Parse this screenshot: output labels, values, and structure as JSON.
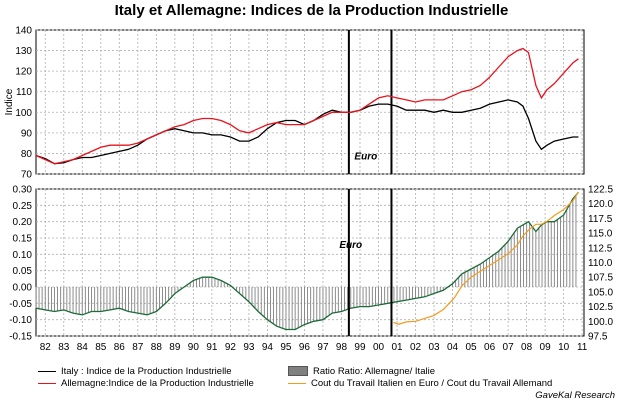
{
  "title": "Italy et Allemagne: Indices de la Production Industrielle",
  "credit": "GaveKal Research",
  "colors": {
    "italy": "#000000",
    "germany": "#e8131d",
    "ratio_bar": "#808080",
    "ratio_line": "#1e6b3a",
    "labour_cost": "#f39b1c",
    "grid": "#b0b0b0"
  },
  "legend": {
    "italy": "Italy : Indice de la Production Industrielle",
    "germany": "Allemagne:Indice de la Production Industrielle",
    "ratio": "Ratio Ratio: Allemagne/ Italie",
    "labour_cost": "Cout du Travail Italien en Euro / Cout du Travail Allemand"
  },
  "chart_data": [
    {
      "type": "line",
      "title": "Italy et Allemagne: Indices de la Production Industrielle",
      "ylabel": "Indice",
      "ylim": [
        70,
        140
      ],
      "yticks": [
        70,
        80,
        90,
        100,
        110,
        120,
        130,
        140
      ],
      "xlim": [
        1982,
        2011.6
      ],
      "xtick_labels": [
        "82",
        "83",
        "84",
        "85",
        "86",
        "87",
        "88",
        "89",
        "90",
        "91",
        "92",
        "93",
        "94",
        "95",
        "96",
        "97",
        "98",
        "99",
        "00",
        "01",
        "02",
        "03",
        "04",
        "05",
        "06",
        "07",
        "08",
        "09",
        "10",
        "11"
      ],
      "grid": true,
      "annotations": [
        {
          "text": "Euro",
          "x": 1999.2,
          "y": 77
        }
      ],
      "vlines": [
        1998.9,
        2001.2
      ],
      "series": [
        {
          "name": "Italy : Indice de la Production Industrielle",
          "x": [
            1982,
            1982.5,
            1983,
            1983.5,
            1984,
            1984.5,
            1985,
            1985.5,
            1986,
            1986.5,
            1987,
            1987.5,
            1988,
            1988.5,
            1989,
            1989.5,
            1990,
            1990.5,
            1991,
            1991.5,
            1992,
            1992.5,
            1993,
            1993.5,
            1994,
            1994.5,
            1995,
            1995.5,
            1996,
            1996.5,
            1997,
            1997.5,
            1998,
            1998.5,
            1999,
            1999.5,
            2000,
            2000.5,
            2001,
            2001.5,
            2002,
            2002.5,
            2003,
            2003.5,
            2004,
            2004.5,
            2005,
            2005.5,
            2006,
            2006.5,
            2007,
            2007.5,
            2008,
            2008.3,
            2008.6,
            2009,
            2009.3,
            2009.6,
            2010,
            2010.5,
            2011,
            2011.3
          ],
          "values": [
            79,
            77.5,
            75,
            75.5,
            77,
            78,
            78,
            79,
            80,
            81,
            82,
            84,
            87,
            89,
            91,
            92,
            91,
            90,
            90,
            89,
            89,
            88,
            86,
            86,
            88,
            92,
            95,
            96,
            96,
            94,
            96,
            99,
            101,
            100,
            100,
            101,
            103,
            104,
            104,
            103,
            101,
            101,
            101,
            100,
            101,
            100,
            100,
            101,
            102,
            104,
            105,
            106,
            105,
            103,
            97,
            86,
            82,
            84,
            86,
            87,
            88,
            88
          ]
        },
        {
          "name": "Allemagne:Indice de la Production Industrielle",
          "x": [
            1982,
            1982.5,
            1983,
            1983.5,
            1984,
            1984.5,
            1985,
            1985.5,
            1986,
            1986.5,
            1987,
            1987.5,
            1988,
            1988.5,
            1989,
            1989.5,
            1990,
            1990.5,
            1991,
            1991.5,
            1992,
            1992.5,
            1993,
            1993.5,
            1994,
            1994.5,
            1995,
            1995.5,
            1996,
            1996.5,
            1997,
            1997.5,
            1998,
            1998.5,
            1999,
            1999.5,
            2000,
            2000.5,
            2001,
            2001.5,
            2002,
            2002.5,
            2003,
            2003.5,
            2004,
            2004.5,
            2005,
            2005.5,
            2006,
            2006.5,
            2007,
            2007.5,
            2008,
            2008.3,
            2008.6,
            2009,
            2009.3,
            2009.6,
            2010,
            2010.5,
            2011,
            2011.3
          ],
          "values": [
            79,
            77,
            75,
            76,
            77,
            79,
            81,
            83,
            84,
            84,
            84,
            85,
            87,
            89,
            91,
            93,
            94,
            96,
            97,
            97,
            96,
            94,
            91,
            90,
            92,
            94,
            95,
            94,
            94,
            94,
            96,
            98,
            100,
            100,
            100,
            101,
            104,
            107,
            108,
            107,
            106,
            105,
            106,
            106,
            106,
            108,
            110,
            111,
            113,
            117,
            122,
            127,
            130,
            131,
            129,
            113,
            107,
            111,
            114,
            119,
            124,
            126
          ]
        }
      ]
    },
    {
      "type": "bar",
      "ylim": [
        -0.15,
        0.3
      ],
      "yticks": [
        -0.15,
        -0.1,
        -0.05,
        0.0,
        0.05,
        0.1,
        0.15,
        0.2,
        0.25,
        0.3
      ],
      "y2lim": [
        97.5,
        122.5
      ],
      "y2ticks": [
        97.5,
        100.0,
        102.5,
        105.0,
        107.5,
        110.0,
        112.5,
        115.0,
        117.5,
        120.0,
        122.5
      ],
      "xlim": [
        1982,
        2011.6
      ],
      "xtick_labels": [
        "82",
        "83",
        "84",
        "85",
        "86",
        "87",
        "88",
        "89",
        "90",
        "91",
        "92",
        "93",
        "94",
        "95",
        "96",
        "97",
        "98",
        "99",
        "00",
        "01",
        "02",
        "03",
        "04",
        "05",
        "06",
        "07",
        "08",
        "09",
        "10",
        "11"
      ],
      "grid": true,
      "annotations": [
        {
          "text": "Euro",
          "x": 1999,
          "y": 0.12
        }
      ],
      "vlines": [
        1998.9,
        2001.2
      ],
      "series": [
        {
          "name": "Ratio Ratio: Allemagne/ Italie",
          "x": [
            1982,
            1982.5,
            1983,
            1983.5,
            1984,
            1984.5,
            1985,
            1985.5,
            1986,
            1986.5,
            1987,
            1987.5,
            1988,
            1988.5,
            1989,
            1989.5,
            1990,
            1990.5,
            1991,
            1991.5,
            1992,
            1992.5,
            1993,
            1993.5,
            1994,
            1994.5,
            1995,
            1995.5,
            1996,
            1996.5,
            1997,
            1997.5,
            1998,
            1998.5,
            1999,
            1999.5,
            2000,
            2000.5,
            2001,
            2001.5,
            2002,
            2002.5,
            2003,
            2003.5,
            2004,
            2004.5,
            2005,
            2005.5,
            2006,
            2006.5,
            2007,
            2007.5,
            2008,
            2008.3,
            2008.6,
            2009,
            2009.3,
            2009.6,
            2010,
            2010.5,
            2011,
            2011.3
          ],
          "values": [
            -0.065,
            -0.07,
            -0.075,
            -0.07,
            -0.08,
            -0.085,
            -0.075,
            -0.075,
            -0.07,
            -0.065,
            -0.075,
            -0.08,
            -0.085,
            -0.075,
            -0.05,
            -0.02,
            0.0,
            0.02,
            0.03,
            0.03,
            0.02,
            0.005,
            -0.02,
            -0.045,
            -0.075,
            -0.1,
            -0.12,
            -0.13,
            -0.13,
            -0.115,
            -0.105,
            -0.1,
            -0.08,
            -0.075,
            -0.065,
            -0.06,
            -0.06,
            -0.055,
            -0.05,
            -0.045,
            -0.04,
            -0.035,
            -0.03,
            -0.02,
            -0.01,
            0.01,
            0.04,
            0.055,
            0.07,
            0.09,
            0.11,
            0.14,
            0.18,
            0.19,
            0.2,
            0.17,
            0.19,
            0.2,
            0.2,
            0.22,
            0.27,
            0.29
          ]
        },
        {
          "name": "Cout du Travail Italien en Euro / Cout du Travail Allemand",
          "axis": "right",
          "x": [
            2001.3,
            2001.6,
            2002,
            2002.5,
            2003,
            2003.5,
            2004,
            2004.3,
            2004.6,
            2005,
            2005.5,
            2006,
            2006.5,
            2007,
            2007.5,
            2008,
            2008.3,
            2008.6,
            2009,
            2009.3,
            2009.6,
            2010,
            2010.5,
            2011,
            2011.3
          ],
          "values": [
            99.8,
            99.5,
            99.9,
            100.0,
            100.5,
            101,
            102,
            103,
            104,
            106,
            107.5,
            108.5,
            109.5,
            110.5,
            111.5,
            113,
            114.5,
            115.5,
            116.5,
            116.5,
            117,
            118,
            119,
            120.5,
            122
          ]
        }
      ]
    }
  ]
}
